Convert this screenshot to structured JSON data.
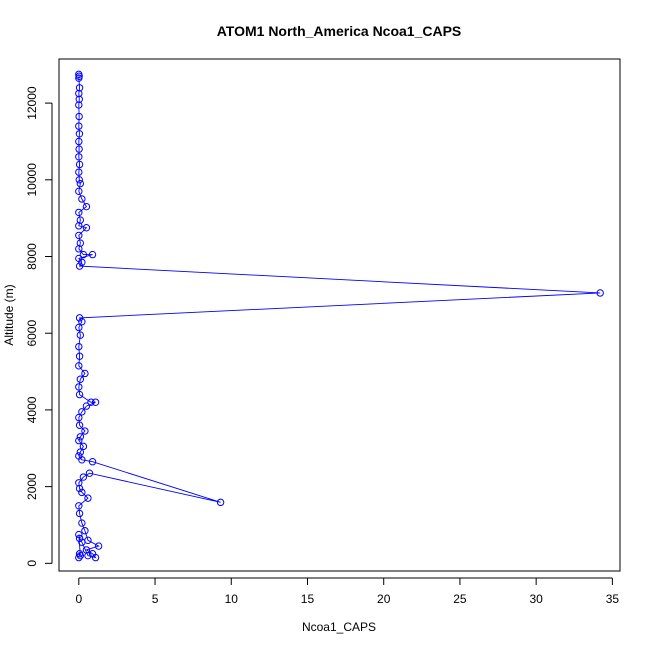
{
  "chart_data": {
    "type": "line",
    "title": "ATOM1 North_America Ncoa1_CAPS",
    "xlabel": "Ncoa1_CAPS",
    "ylabel": "Altitude (m)",
    "xlim": [
      -1.3,
      35.5
    ],
    "ylim": [
      -200,
      13150
    ],
    "xticks": [
      0,
      5,
      10,
      15,
      20,
      25,
      30,
      35
    ],
    "yticks": [
      0,
      2000,
      4000,
      6000,
      8000,
      10000,
      12000
    ],
    "grid": false,
    "series": [
      {
        "color": "#0000ff",
        "marker": "open-circle",
        "points": [
          [
            0.0,
            12750
          ],
          [
            0.02,
            12700
          ],
          [
            0.0,
            12650
          ],
          [
            0.05,
            12400
          ],
          [
            0.0,
            12250
          ],
          [
            0.03,
            12100
          ],
          [
            0.0,
            11950
          ],
          [
            0.02,
            11650
          ],
          [
            0.0,
            11400
          ],
          [
            0.04,
            11200
          ],
          [
            0.0,
            11000
          ],
          [
            0.02,
            10800
          ],
          [
            0.0,
            10600
          ],
          [
            0.05,
            10400
          ],
          [
            0.0,
            10200
          ],
          [
            0.03,
            10000
          ],
          [
            0.1,
            9900
          ],
          [
            0.0,
            9700
          ],
          [
            0.2,
            9500
          ],
          [
            0.5,
            9300
          ],
          [
            0.0,
            9150
          ],
          [
            0.1,
            8950
          ],
          [
            0.0,
            8800
          ],
          [
            0.5,
            8750
          ],
          [
            0.0,
            8550
          ],
          [
            0.1,
            8350
          ],
          [
            0.0,
            8200
          ],
          [
            0.3,
            8050
          ],
          [
            0.9,
            8050
          ],
          [
            0.0,
            7950
          ],
          [
            0.2,
            7850
          ],
          [
            0.05,
            7750
          ],
          [
            34.2,
            7050
          ],
          [
            0.05,
            6400
          ],
          [
            0.2,
            6300
          ],
          [
            0.0,
            6150
          ],
          [
            0.1,
            5950
          ],
          [
            0.0,
            5650
          ],
          [
            0.05,
            5400
          ],
          [
            0.0,
            5150
          ],
          [
            0.4,
            4950
          ],
          [
            0.1,
            4800
          ],
          [
            0.0,
            4600
          ],
          [
            0.05,
            4400
          ],
          [
            0.8,
            4200
          ],
          [
            1.1,
            4200
          ],
          [
            0.5,
            4100
          ],
          [
            0.2,
            3950
          ],
          [
            0.0,
            3800
          ],
          [
            0.05,
            3600
          ],
          [
            0.4,
            3450
          ],
          [
            0.1,
            3300
          ],
          [
            0.0,
            3200
          ],
          [
            0.3,
            3050
          ],
          [
            0.1,
            2900
          ],
          [
            0.0,
            2800
          ],
          [
            0.2,
            2700
          ],
          [
            0.9,
            2650
          ],
          [
            9.3,
            1590
          ],
          [
            0.7,
            2350
          ],
          [
            0.3,
            2250
          ],
          [
            0.0,
            2100
          ],
          [
            0.05,
            1950
          ],
          [
            0.2,
            1850
          ],
          [
            0.6,
            1700
          ],
          [
            0.0,
            1500
          ],
          [
            0.05,
            1300
          ],
          [
            0.2,
            1050
          ],
          [
            0.4,
            850
          ],
          [
            0.6,
            600
          ],
          [
            1.3,
            450
          ],
          [
            0.5,
            350
          ],
          [
            0.9,
            250
          ],
          [
            1.1,
            150
          ],
          [
            0.6,
            200
          ],
          [
            0.2,
            550
          ],
          [
            0.05,
            650
          ],
          [
            0.0,
            750
          ],
          [
            0.1,
            200
          ],
          [
            0.05,
            250
          ],
          [
            0.0,
            150
          ]
        ]
      }
    ]
  }
}
